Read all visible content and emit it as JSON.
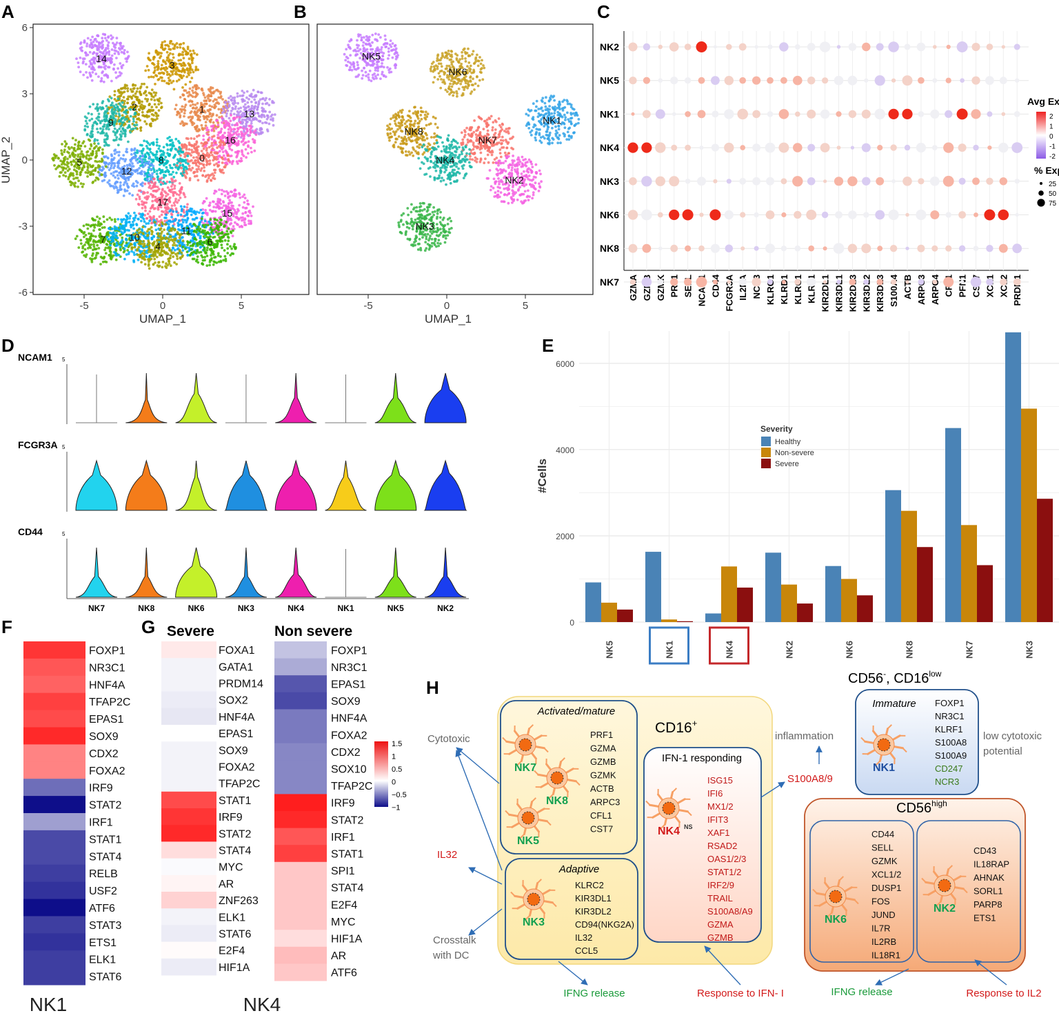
{
  "colors": {
    "healthy": "#4a83b6",
    "nonsevere": "#c8860a",
    "severe": "#8b0f0f",
    "heat_high": "#ee1c1c",
    "heat_low": "#0e0e8a",
    "nk_green": "#12a050",
    "nk_blue": "#1f4fa0",
    "red_text": "#d21a1a"
  },
  "panelA": {
    "label": "A",
    "xlabel": "UMAP_1",
    "ylabel": "UMAP_2",
    "xticks": [
      "-5",
      "0",
      "5"
    ],
    "yticks": [
      "6",
      "3",
      "0",
      "-3",
      "-6"
    ],
    "clusters": [
      {
        "id": "14",
        "u": -3.9,
        "v": 4.6,
        "color": "#c77cff"
      },
      {
        "id": "3",
        "u": 0.6,
        "v": 4.3,
        "color": "#cd9600"
      },
      {
        "id": "2",
        "u": -1.8,
        "v": 2.4,
        "color": "#b39b00"
      },
      {
        "id": "1",
        "u": 2.5,
        "v": 2.3,
        "color": "#e8884a"
      },
      {
        "id": "13",
        "u": 5.5,
        "v": 2.1,
        "color": "#b98bf0"
      },
      {
        "id": "9",
        "u": -3.3,
        "v": 1.7,
        "color": "#1fb7a8"
      },
      {
        "id": "16",
        "u": 4.3,
        "v": 0.9,
        "color": "#fb61d7"
      },
      {
        "id": "0",
        "u": 2.5,
        "v": 0.1,
        "color": "#f8766d"
      },
      {
        "id": "8",
        "u": -0.1,
        "v": 0.0,
        "color": "#00bfc4"
      },
      {
        "id": "12",
        "u": -2.3,
        "v": -0.5,
        "color": "#619cff"
      },
      {
        "id": "5",
        "u": -5.3,
        "v": -0.1,
        "color": "#7cae00"
      },
      {
        "id": "17",
        "u": 0.0,
        "v": -1.9,
        "color": "#ff6c91"
      },
      {
        "id": "15",
        "u": 4.1,
        "v": -2.4,
        "color": "#f564e3"
      },
      {
        "id": "11",
        "u": 1.5,
        "v": -3.2,
        "color": "#00a9ff"
      },
      {
        "id": "7",
        "u": -3.8,
        "v": -3.6,
        "color": "#53b400"
      },
      {
        "id": "10",
        "u": -1.8,
        "v": -3.5,
        "color": "#00b0f6"
      },
      {
        "id": "4",
        "u": -0.3,
        "v": -3.9,
        "color": "#a3a500"
      },
      {
        "id": "6",
        "u": 3.0,
        "v": -3.7,
        "color": "#39b600"
      }
    ]
  },
  "panelB": {
    "label": "B",
    "xlabel": "UMAP_1",
    "xticks": [
      "-5",
      "0",
      "5"
    ],
    "clusters": [
      {
        "id": "NK5",
        "u": -4.8,
        "v": 4.7,
        "color": "#c77cff"
      },
      {
        "id": "NK6",
        "u": 0.7,
        "v": 4.0,
        "color": "#c9a227"
      },
      {
        "id": "NK1",
        "u": 6.7,
        "v": 1.8,
        "color": "#35a4e8"
      },
      {
        "id": "NK8",
        "u": -2.1,
        "v": 1.3,
        "color": "#c99a1a"
      },
      {
        "id": "NK7",
        "u": 2.6,
        "v": 0.9,
        "color": "#f8766d"
      },
      {
        "id": "NK4",
        "u": -0.1,
        "v": 0.0,
        "color": "#1fb7a8"
      },
      {
        "id": "NK2",
        "u": 4.3,
        "v": -0.9,
        "color": "#f564e3"
      },
      {
        "id": "NK3",
        "u": -1.4,
        "v": -3.0,
        "color": "#39b64a"
      }
    ]
  },
  "panelC": {
    "label": "C",
    "rows": [
      "NK2",
      "NK5",
      "NK1",
      "NK4",
      "NK3",
      "NK6",
      "NK8",
      "NK7"
    ],
    "genes": [
      "GZMA",
      "GZMB",
      "GZMK",
      "PRF1",
      "SELL",
      "NCAM1",
      "CD44",
      "FCGR3A",
      "IL2RA",
      "NCR3",
      "KLRG1",
      "KLRD1",
      "KLRC1",
      "KLRF1",
      "KIR2DL1",
      "KIR3DL1",
      "KIR2DL3",
      "KIR3DL2",
      "KIR3DL3",
      "S100A4",
      "ACTB",
      "ARPC3",
      "ARPC4",
      "CFL1",
      "PFN1",
      "CST7",
      "XCL1",
      "XCL2",
      "PRDM1"
    ],
    "legend_title_expr": "Avg Exp",
    "legend_expr_ticks": [
      "2",
      "1",
      "0",
      "-1",
      "-2"
    ],
    "legend_title_pct": "% Exp",
    "legend_pct_ticks": [
      "25",
      "50",
      "75"
    ]
  },
  "panelD": {
    "label": "D",
    "genes": [
      "NCAM1",
      "FCGR3A",
      "CD44"
    ],
    "ymax": "5",
    "groups": [
      "NK7",
      "NK8",
      "NK6",
      "NK3",
      "NK4",
      "NK1",
      "NK5",
      "NK2"
    ],
    "group_colors": [
      "#22d3ee",
      "#f47c1a",
      "#c4f02a",
      "#1f8fe0",
      "#ee1fae",
      "#f7cc1a",
      "#7de01a",
      "#1a3ef0"
    ]
  },
  "panelE": {
    "label": "E",
    "chart_data": {
      "type": "bar",
      "categories": [
        "NK5",
        "NK1",
        "NK4",
        "NK2",
        "NK6",
        "NK8",
        "NK7",
        "NK3"
      ],
      "series": [
        {
          "name": "Healthy",
          "values": [
            920,
            1630,
            200,
            1610,
            1300,
            3060,
            4500,
            6720
          ]
        },
        {
          "name": "Non-severe",
          "values": [
            450,
            60,
            1290,
            870,
            1000,
            2580,
            2250,
            4950
          ]
        },
        {
          "name": "Severe",
          "values": [
            290,
            20,
            800,
            430,
            620,
            1740,
            1320,
            2860
          ]
        }
      ],
      "ylabel": "#Cells",
      "yticks": [
        "0",
        "2000",
        "4000",
        "6000"
      ],
      "ylim": [
        0,
        6750
      ],
      "legend_title": "Severity",
      "highlighted": {
        "NK1": "#3b7dc4",
        "NK4": "#c4282b"
      }
    }
  },
  "panelF": {
    "label": "F",
    "genes": [
      "FOXP1",
      "NR3C1",
      "HNF4A",
      "TFAP2C",
      "EPAS1",
      "SOX9",
      "CDX2",
      "FOXA2",
      "IRF9",
      "STAT2",
      "IRF1",
      "STAT1",
      "STAT4",
      "RELB",
      "USF2",
      "ATF6",
      "STAT3",
      "ETS1",
      "ELK1",
      "STAT6"
    ],
    "values": [
      0.9,
      0.75,
      0.7,
      0.85,
      0.8,
      0.95,
      0.55,
      0.55,
      -0.6,
      -1.0,
      -0.4,
      -0.75,
      -0.75,
      -0.8,
      -0.85,
      -1.0,
      -0.8,
      -0.85,
      -0.8,
      -0.8
    ],
    "footer": "NK1"
  },
  "panelG": {
    "label": "G",
    "title_severe": "Severe",
    "title_nonsevere": "Non severe",
    "severe_genes": [
      "FOXA1",
      "GATA1",
      "PRDM14",
      "SOX2",
      "HNF4A",
      "EPAS1",
      "SOX9",
      "FOXA2",
      "TFAP2C",
      "STAT1",
      "IRF9",
      "STAT2",
      "STAT4",
      "MYC",
      "AR",
      "ZNF263",
      "ELK1",
      "STAT6",
      "E2F4",
      "HIF1A"
    ],
    "severe_values": [
      0.1,
      -0.05,
      -0.05,
      -0.08,
      -0.1,
      0.0,
      -0.05,
      -0.05,
      -0.05,
      0.8,
      0.9,
      0.95,
      0.15,
      -0.02,
      0.05,
      0.2,
      -0.05,
      -0.08,
      0.02,
      -0.08
    ],
    "nonsevere_genes": [
      "FOXP1",
      "NR3C1",
      "EPAS1",
      "SOX9",
      "HNF4A",
      "FOXA2",
      "CDX2",
      "SOX10",
      "TFAP2C",
      "IRF9",
      "STAT2",
      "IRF1",
      "STAT1",
      "SPI1",
      "STAT4",
      "E2F4",
      "MYC",
      "HIF1A",
      "AR",
      "ATF6"
    ],
    "nonsevere_values": [
      -0.25,
      -0.35,
      -0.7,
      -0.75,
      -0.55,
      -0.55,
      -0.5,
      -0.5,
      -0.5,
      1.0,
      0.95,
      0.75,
      0.85,
      0.25,
      0.25,
      0.25,
      0.25,
      0.15,
      0.3,
      0.25
    ],
    "legend_ticks": [
      "1.5",
      "1",
      "0.5",
      "0",
      "−0.5",
      "−1"
    ],
    "footer": "NK4"
  },
  "panelH": {
    "label": "H",
    "cd16_title": "CD16",
    "cd16_sup": "+",
    "cd56neg_title_a": "CD56",
    "cd56neg_sup_a": "-",
    "cd56neg_title_b": ", CD16",
    "cd56neg_sup_b": "low",
    "cd56high_title": "CD56",
    "cd56high_sup": "high",
    "activated_title": "Activated/mature",
    "activated_genes": [
      "PRF1",
      "GZMA",
      "GZMB",
      "GZMK",
      "ACTB",
      "ARPC3",
      "CFL1",
      "CST7"
    ],
    "nk7": "NK7",
    "nk8": "NK8",
    "nk5": "NK5",
    "adaptive_title": "Adaptive",
    "adaptive_genes": [
      "KLRC2",
      "KIR3DL1",
      "KIR3DL2",
      "CD94(NKG2A)",
      "IL32",
      "CCL5"
    ],
    "nk3": "NK3",
    "ifn_title": "IFN-1 responding",
    "ifn_genes": [
      "ISG15",
      "IFI6",
      "MX1/2",
      "IFIT3",
      "XAF1",
      "RSAD2",
      "OAS1/2/3",
      "STAT1/2",
      "IRF2/9",
      "TRAIL",
      "S100A8/A9",
      "GZMA",
      "GZMB"
    ],
    "nk4": "NK4",
    "nk4_sup": "NS",
    "immature_title": "Immature",
    "immature_genes": [
      "FOXP1",
      "NR3C1",
      "KLRF1",
      "S100A8",
      "S100A9"
    ],
    "immature_genes_green": [
      "CD247",
      "NCR3"
    ],
    "nk1": "NK1",
    "nk6_genes": [
      "CD44",
      "SELL",
      "GZMK",
      "XCL1/2",
      "DUSP1",
      "FOS",
      "JUND",
      "IL7R",
      "IL2RB",
      "IL18R1"
    ],
    "nk6": "NK6",
    "nk2_genes": [
      "CD43",
      "IL18RAP",
      "AHNAK",
      "SORL1",
      "PARP8",
      "ETS1"
    ],
    "nk2": "NK2",
    "cytotoxic": "Cytotoxic",
    "il32": "IL32",
    "crosstalk_a": "Crosstalk",
    "crosstalk_b": "with DC",
    "inflammation": "inflammation",
    "s100a89": "S100A8/9",
    "low_cyto_a": "low cytotoxic",
    "low_cyto_b": "potential",
    "ifng_release_1": "IFNG release",
    "response_ifn": "Response to IFN- I",
    "ifng_release_2": "IFNG release",
    "response_il2": "Response to IL2"
  }
}
